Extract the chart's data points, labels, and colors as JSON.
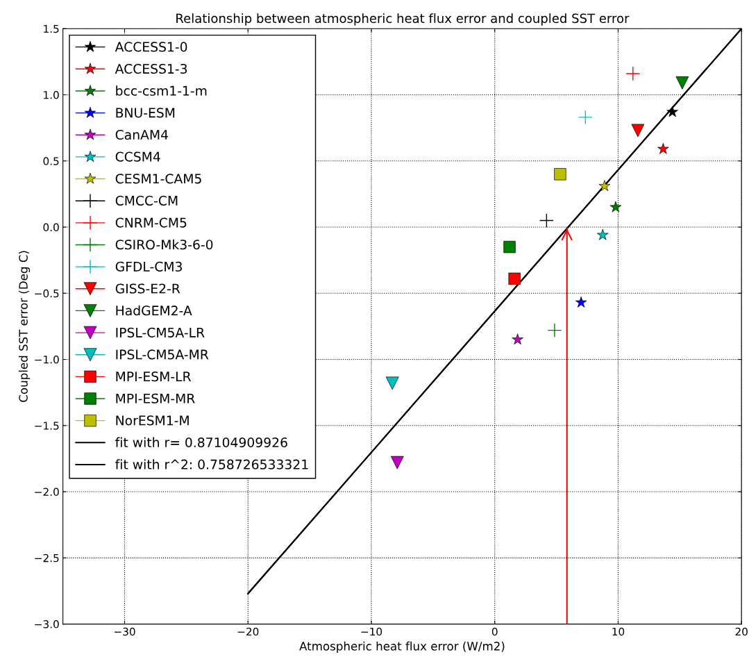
{
  "chart_data": {
    "type": "scatter",
    "title": "Relationship between atmospheric heat flux error and coupled SST error",
    "xlabel": "Atmospheric heat flux error (W/m2)",
    "ylabel": "Coupled SST error (Deg C)",
    "xlim": [
      -35,
      20
    ],
    "xticks": [
      {
        "value": -30,
        "label": "−30"
      },
      {
        "value": -20,
        "label": "−20"
      },
      {
        "value": -10,
        "label": "−10"
      },
      0,
      10,
      20
    ],
    "ylim": [
      -3.0,
      1.5
    ],
    "yticks": [
      {
        "value": -3.0,
        "label": "−3.0"
      },
      {
        "value": -2.5,
        "label": "−2.5"
      },
      {
        "value": -2.0,
        "label": "−2.0"
      },
      {
        "value": -1.5,
        "label": "−1.5"
      },
      {
        "value": -1.0,
        "label": "−1.0"
      },
      {
        "value": -0.5,
        "label": "−0.5"
      },
      {
        "value": 0.0,
        "label": "0.0"
      },
      {
        "value": 0.5,
        "label": "0.5"
      },
      {
        "value": 1.0,
        "label": "1.0"
      },
      {
        "value": 1.5,
        "label": "1.5"
      }
    ],
    "grid": true,
    "legend": "top left",
    "series": [
      {
        "name": "ACCESS1-0",
        "color": "#000000",
        "marker": "star",
        "x": [
          14.4
        ],
        "values": [
          0.87
        ]
      },
      {
        "name": "ACCESS1-3",
        "color": "#ff0000",
        "marker": "star",
        "x": [
          13.65
        ],
        "values": [
          0.59
        ]
      },
      {
        "name": "bcc-csm1-1-m",
        "color": "#008000",
        "marker": "star",
        "x": [
          9.8
        ],
        "values": [
          0.15
        ]
      },
      {
        "name": "BNU-ESM",
        "color": "#0000ff",
        "marker": "star",
        "x": [
          7.0
        ],
        "values": [
          -0.57
        ]
      },
      {
        "name": "CanAM4",
        "color": "#bf00bf",
        "marker": "star",
        "x": [
          1.85
        ],
        "values": [
          -0.85
        ]
      },
      {
        "name": "CCSM4",
        "color": "#00bfbf",
        "marker": "star",
        "x": [
          8.75
        ],
        "values": [
          -0.06
        ]
      },
      {
        "name": "CESM1-CAM5",
        "color": "#bfbf00",
        "marker": "star",
        "x": [
          8.9
        ],
        "values": [
          0.31
        ]
      },
      {
        "name": "CMCC-CM",
        "color": "#000000",
        "marker": "cross",
        "x": [
          4.2
        ],
        "values": [
          0.05
        ]
      },
      {
        "name": "CNRM-CM5",
        "color": "#ff0000",
        "marker": "cross",
        "x": [
          11.2
        ],
        "values": [
          1.16
        ]
      },
      {
        "name": "CSIRO-Mk3-6-0",
        "color": "#008000",
        "marker": "cross",
        "x": [
          4.85
        ],
        "values": [
          -0.78
        ]
      },
      {
        "name": "GFDL-CM3",
        "color": "#00bfbf",
        "marker": "cross",
        "x": [
          7.35
        ],
        "values": [
          0.83
        ]
      },
      {
        "name": "GISS-E2-R",
        "color": "#ff0000",
        "marker": "triangle",
        "x": [
          11.6
        ],
        "values": [
          0.73
        ]
      },
      {
        "name": "HadGEM2-A",
        "color": "#008000",
        "marker": "triangle",
        "x": [
          15.2
        ],
        "values": [
          1.09
        ]
      },
      {
        "name": "IPSL-CM5A-LR",
        "color": "#bf00bf",
        "marker": "triangle",
        "x": [
          -7.9
        ],
        "values": [
          -1.78
        ]
      },
      {
        "name": "IPSL-CM5A-MR",
        "color": "#00bfbf",
        "marker": "triangle",
        "x": [
          -8.3
        ],
        "values": [
          -1.18
        ]
      },
      {
        "name": "MPI-ESM-LR",
        "color": "#ff0000",
        "marker": "square",
        "x": [
          1.6
        ],
        "values": [
          -0.39
        ]
      },
      {
        "name": "MPI-ESM-MR",
        "color": "#008000",
        "marker": "square",
        "x": [
          1.2
        ],
        "values": [
          -0.15
        ]
      },
      {
        "name": "NorESM1-M",
        "color": "#bfbf00",
        "marker": "square",
        "x": [
          5.3
        ],
        "values": [
          0.4
        ]
      },
      {
        "name": "fit with r= 0.87104909926",
        "type": "line",
        "color": "#000000",
        "marker": "none",
        "x": [
          -20,
          20
        ],
        "values": [
          -2.77,
          1.5
        ]
      },
      {
        "name": "fit with r^2: 0.758726533321",
        "type": "line",
        "color": "#000000",
        "marker": "none",
        "x": [
          -20,
          20
        ],
        "values": [
          -2.77,
          1.5
        ]
      }
    ],
    "ref_lines": [
      {
        "axis": "x",
        "value": 5.85,
        "color": "#ff0000"
      }
    ]
  }
}
